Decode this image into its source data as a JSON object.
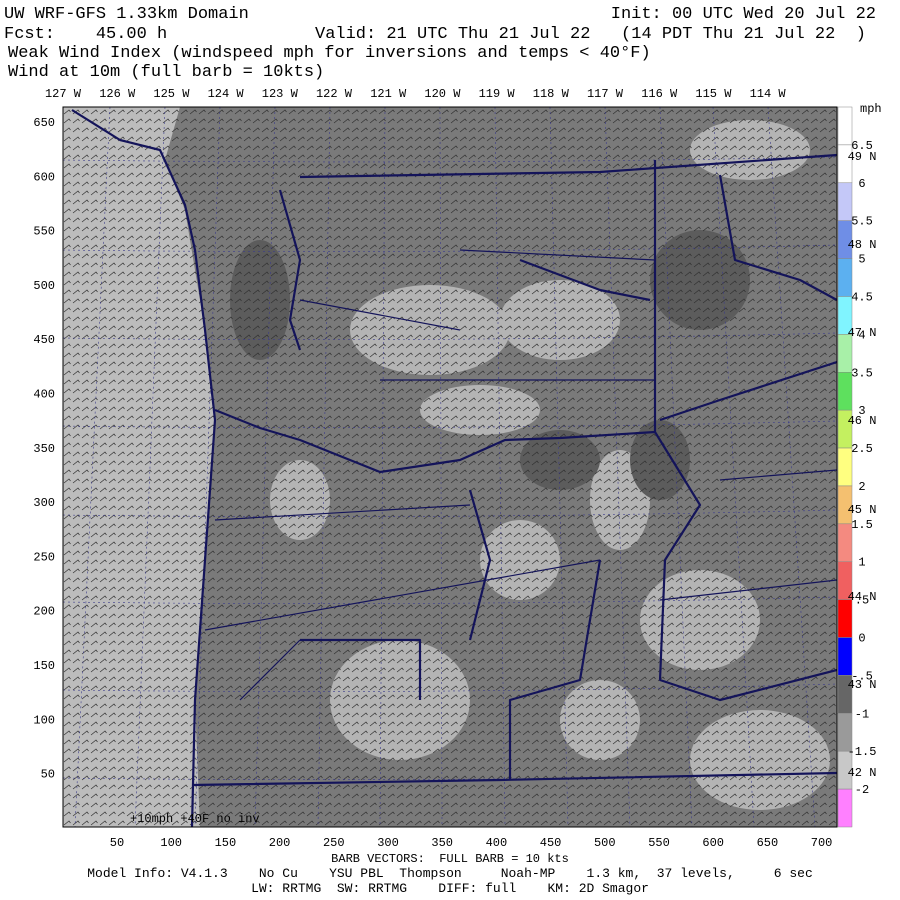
{
  "header": {
    "title": "UW WRF-GFS 1.33km Domain",
    "init": "Init: 00 UTC Wed 20 Jul 22",
    "forecast": "Fcst:    45.00 h",
    "valid": "Valid: 21 UTC Thu 21 Jul 22   (14 PDT Thu 21 Jul 22  )",
    "field": "Weak Wind Index (windspeed mph for inversions and temps < 40°F)",
    "wind": "Wind at 10m (full barb = 10kts)"
  },
  "map": {
    "longitude_labels": [
      "127 W",
      "126 W",
      "125 W",
      "124 W",
      "123 W",
      "122 W",
      "121 W",
      "120 W",
      "119 W",
      "118 W",
      "117 W",
      "116 W",
      "115 W",
      "114 W"
    ],
    "latitude_labels": [
      "49 N",
      "48 N",
      "47 N",
      "46 N",
      "45 N",
      "44 N",
      "43 N",
      "42 N"
    ],
    "x_axis_labels": [
      "50",
      "100",
      "150",
      "200",
      "250",
      "300",
      "350",
      "400",
      "450",
      "500",
      "550",
      "600",
      "650",
      "700"
    ],
    "y_axis_labels": [
      "650",
      "600",
      "550",
      "500",
      "450",
      "400",
      "350",
      "300",
      "250",
      "200",
      "150",
      "100",
      "50"
    ],
    "inset_note": "+10mph +40F no inv"
  },
  "colorbar": {
    "unit": "mph",
    "labels": [
      "6.5",
      "6",
      "5.5",
      "5",
      "4.5",
      "4",
      "3.5",
      "3",
      "2.5",
      "2",
      "1.5",
      "1",
      ".5",
      "0",
      "-.5",
      "-1",
      "-1.5",
      "-2"
    ],
    "colors": [
      "#ffffff",
      "#ffffff",
      "#c4c8f8",
      "#6f8ee6",
      "#5cb0f0",
      "#80f4ff",
      "#a8f0a8",
      "#5ee05e",
      "#c4f060",
      "#ffff80",
      "#f4c070",
      "#f48a80",
      "#f06060",
      "#ff0000",
      "#0000ff",
      "#666666",
      "#9a9a9a",
      "#c8c8c8",
      "#ff80ff"
    ]
  },
  "footer": {
    "barb": "BARB VECTORS:  FULL BARB = 10 kts",
    "model": "Model Info: V4.1.3    No Cu    YSU PBL  Thompson     Noah-MP    1.3 km,  37 levels,     6 sec",
    "physics": "LW: RRTMG  SW: RRTMG    DIFF: full    KM: 2D Smagor"
  }
}
